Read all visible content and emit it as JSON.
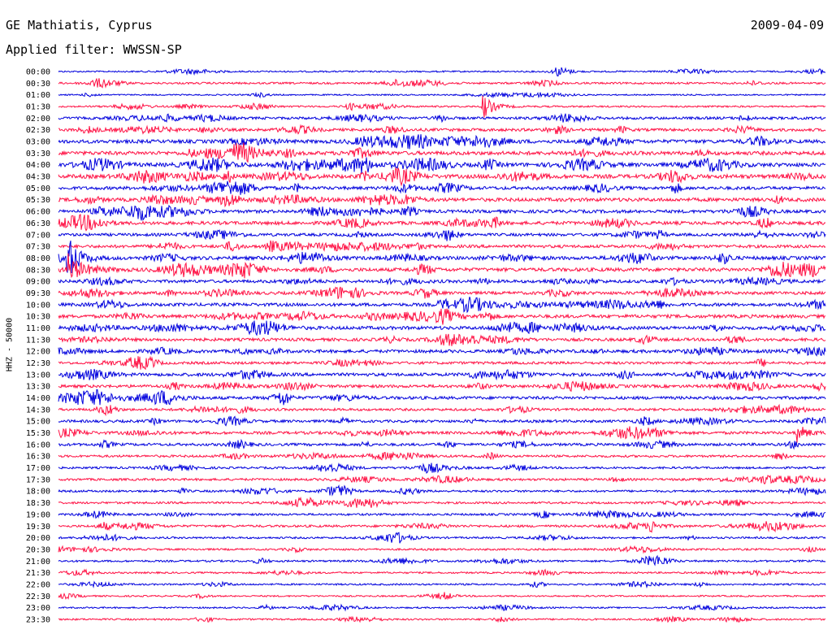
{
  "header": {
    "title": "GE Mathiatis, Cyprus",
    "date": "2009-04-09",
    "filter": "Applied filter: WWSSN-SP"
  },
  "colors": {
    "even_row": "#0000dd",
    "odd_row": "#ff1144"
  },
  "chart_data": {
    "type": "line",
    "title": "GE Mathiatis, Cyprus",
    "subtitle": "Applied filter: WWSSN-SP",
    "xlabel": "",
    "ylabel": "HHZ - 50000",
    "y_tick_labels": [
      "00:00",
      "00:30",
      "01:00",
      "01:30",
      "02:00",
      "02:30",
      "03:00",
      "03:30",
      "04:00",
      "04:30",
      "05:00",
      "05:30",
      "06:00",
      "06:30",
      "07:00",
      "07:30",
      "08:00",
      "08:30",
      "09:00",
      "09:30",
      "10:00",
      "10:30",
      "11:00",
      "11:30",
      "12:00",
      "12:30",
      "13:00",
      "13:30",
      "14:00",
      "14:30",
      "15:00",
      "15:30",
      "16:00",
      "16:30",
      "17:00",
      "17:30",
      "18:00",
      "18:30",
      "19:00",
      "19:30",
      "20:00",
      "20:30",
      "21:00",
      "21:30",
      "22:00",
      "22:30",
      "23:00",
      "23:30"
    ],
    "row_noise_level": [
      0.15,
      0.25,
      0.1,
      0.2,
      0.45,
      0.5,
      0.7,
      0.75,
      0.8,
      0.8,
      0.6,
      0.7,
      0.6,
      0.65,
      0.5,
      0.55,
      0.7,
      0.7,
      0.55,
      0.55,
      0.6,
      0.65,
      0.65,
      0.55,
      0.6,
      0.45,
      0.6,
      0.55,
      0.55,
      0.4,
      0.45,
      0.5,
      0.45,
      0.35,
      0.3,
      0.35,
      0.3,
      0.3,
      0.3,
      0.35,
      0.25,
      0.25,
      0.25,
      0.2,
      0.2,
      0.15,
      0.15,
      0.2
    ],
    "events": [
      {
        "row": 3,
        "x_fraction": 0.553,
        "amplitude": 2.6
      },
      {
        "row": 16,
        "x_fraction": 0.012,
        "amplitude": 3.2
      },
      {
        "row": 17,
        "x_fraction": 0.013,
        "amplitude": 2.8
      },
      {
        "row": 31,
        "x_fraction": 0.962,
        "amplitude": 1.9
      },
      {
        "row": 39,
        "x_fraction": 0.77,
        "amplitude": 1.3
      },
      {
        "row": 0,
        "x_fraction": 0.65,
        "amplitude": 0.6
      },
      {
        "row": 1,
        "x_fraction": 0.9,
        "amplitude": 0.6
      }
    ]
  }
}
